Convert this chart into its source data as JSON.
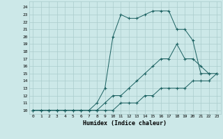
{
  "xlabel": "Humidex (Indice chaleur)",
  "bg_color": "#cce8e8",
  "grid_color": "#aacccc",
  "line_color": "#1a6060",
  "xlim": [
    -0.5,
    23.5
  ],
  "ylim": [
    9.5,
    24.8
  ],
  "xticks": [
    0,
    1,
    2,
    3,
    4,
    5,
    6,
    7,
    8,
    9,
    10,
    11,
    12,
    13,
    14,
    15,
    16,
    17,
    18,
    19,
    20,
    21,
    22,
    23
  ],
  "yticks": [
    10,
    11,
    12,
    13,
    14,
    15,
    16,
    17,
    18,
    19,
    20,
    21,
    22,
    23,
    24
  ],
  "line1_x": [
    0,
    1,
    2,
    3,
    4,
    5,
    6,
    7,
    8,
    9,
    10,
    11,
    12,
    13,
    14,
    15,
    16,
    17,
    18,
    19,
    20,
    21,
    22,
    23
  ],
  "line1_y": [
    10,
    10,
    10,
    10,
    10,
    10,
    10,
    10,
    10,
    10,
    10,
    11,
    11,
    11,
    12,
    12,
    13,
    13,
    13,
    13,
    14,
    14,
    14,
    15
  ],
  "line2_x": [
    0,
    1,
    2,
    3,
    4,
    5,
    6,
    7,
    8,
    9,
    10,
    11,
    12,
    13,
    14,
    15,
    16,
    17,
    18,
    19,
    20,
    21,
    22,
    23
  ],
  "line2_y": [
    10,
    10,
    10,
    10,
    10,
    10,
    10,
    10,
    10,
    11,
    12,
    12,
    13,
    14,
    15,
    16,
    17,
    17,
    19,
    17,
    17,
    16,
    15,
    15
  ],
  "line3_x": [
    0,
    1,
    2,
    3,
    4,
    5,
    6,
    7,
    8,
    9,
    10,
    11,
    12,
    13,
    14,
    15,
    16,
    17,
    18,
    19,
    20,
    21,
    22
  ],
  "line3_y": [
    10,
    10,
    10,
    10,
    10,
    10,
    10,
    10,
    11,
    13,
    20,
    23,
    22.5,
    22.5,
    23,
    23.5,
    23.5,
    23.5,
    21,
    21,
    19.5,
    15,
    15
  ]
}
